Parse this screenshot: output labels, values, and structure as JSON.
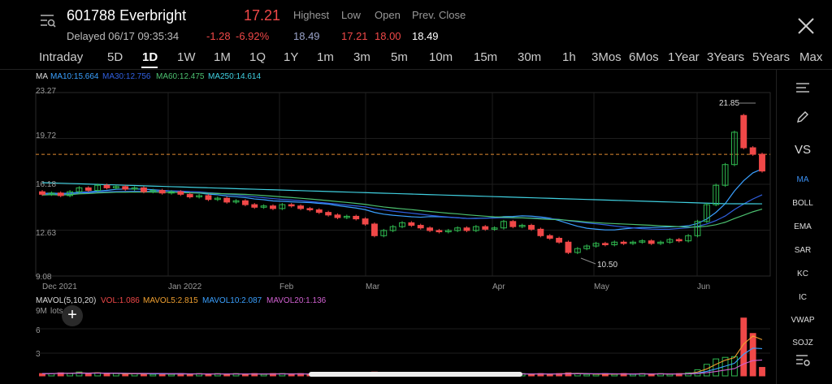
{
  "header": {
    "symbol": "601788 Everbright",
    "price": "17.21",
    "delayed": "Delayed 06/17 09:35:34",
    "change": "-1.28",
    "change_pct": "-6.92%",
    "highest_label": "Highest",
    "low_label": "Low",
    "open_label": "Open",
    "prev_close_label": "Prev. Close",
    "highest": "18.49",
    "low": "17.21",
    "open": "18.00",
    "prev_close": "18.49"
  },
  "tabs": [
    "Intraday",
    "5D",
    "1D",
    "1W",
    "1M",
    "1Q",
    "1Y",
    "1m",
    "3m",
    "5m",
    "10m",
    "15m",
    "30m",
    "1h",
    "3Mos",
    "6Mos",
    "1Year",
    "3Years",
    "5Years",
    "Max"
  ],
  "active_tab": "1D",
  "ma_legend": {
    "ma": "MA",
    "ma10": "MA10:15.664",
    "ma30": "MA30:12.756",
    "ma60": "MA60:12.475",
    "ma250": "MA250:14.614"
  },
  "yaxis": [
    "23.27",
    "19.72",
    "16.18",
    "12.63",
    "9.08"
  ],
  "xaxis": [
    "Dec 2021",
    "Jan 2022",
    "Feb",
    "Mar",
    "Apr",
    "May",
    "Jun"
  ],
  "annotations": {
    "high": "21.85",
    "low": "10.50"
  },
  "vol_legend": {
    "mavol": "MAVOL(5,10,20)",
    "vol": "VOL:1.086",
    "mavol5": "MAVOL5:2.815",
    "mavol10": "MAVOL10:2.087",
    "mavol20": "MAVOL20:1.136"
  },
  "vol_axis": {
    "unit": "9M",
    "lots": "lots",
    "v6": "6",
    "v3": "3"
  },
  "side_tools": [
    "MA",
    "BOLL",
    "EMA",
    "SAR",
    "KC",
    "IC",
    "VWAP",
    "SOJZ"
  ],
  "side_vs": "VS",
  "colors": {
    "up": "#2fb84f",
    "down": "#f04848",
    "ma10": "#3aa0ff",
    "ma30": "#3060e0",
    "ma60": "#4cc070",
    "ma250": "#40d0e0",
    "accent": "#3a8ef0"
  },
  "chart_data": {
    "type": "candlestick",
    "ylim": [
      9.08,
      23.27
    ],
    "prev_close_line": 18.49,
    "points": [
      [
        15.6,
        15.4
      ],
      [
        15.4,
        15.5
      ],
      [
        15.5,
        15.3
      ],
      [
        15.3,
        15.6
      ],
      [
        15.6,
        15.9
      ],
      [
        15.9,
        15.7
      ],
      [
        15.7,
        16.1
      ],
      [
        16.1,
        15.9
      ],
      [
        15.9,
        16.0
      ],
      [
        16.0,
        15.8
      ],
      [
        15.8,
        15.9
      ],
      [
        15.9,
        15.6
      ],
      [
        15.6,
        15.7
      ],
      [
        15.7,
        15.5
      ],
      [
        15.5,
        15.6
      ],
      [
        15.6,
        15.4
      ],
      [
        15.4,
        15.2
      ],
      [
        15.2,
        15.3
      ],
      [
        15.3,
        15.0
      ],
      [
        15.0,
        15.1
      ],
      [
        15.1,
        14.8
      ],
      [
        14.8,
        14.9
      ],
      [
        14.9,
        14.6
      ],
      [
        14.6,
        14.4
      ],
      [
        14.4,
        14.5
      ],
      [
        14.5,
        14.3
      ],
      [
        14.3,
        14.6
      ],
      [
        14.6,
        14.5
      ],
      [
        14.5,
        14.3
      ],
      [
        14.3,
        14.2
      ],
      [
        14.2,
        14.0
      ],
      [
        14.0,
        13.8
      ],
      [
        13.8,
        13.6
      ],
      [
        13.6,
        13.7
      ],
      [
        13.7,
        13.5
      ],
      [
        13.5,
        13.1
      ],
      [
        13.1,
        12.2
      ],
      [
        12.2,
        12.6
      ],
      [
        12.6,
        12.9
      ],
      [
        12.9,
        13.2
      ],
      [
        13.2,
        13.0
      ],
      [
        13.0,
        12.8
      ],
      [
        12.8,
        12.6
      ],
      [
        12.6,
        12.5
      ],
      [
        12.5,
        12.6
      ],
      [
        12.6,
        12.8
      ],
      [
        12.8,
        12.6
      ],
      [
        12.6,
        12.9
      ],
      [
        12.9,
        12.7
      ],
      [
        12.7,
        12.8
      ],
      [
        12.8,
        13.3
      ],
      [
        13.3,
        12.9
      ],
      [
        12.9,
        13.0
      ],
      [
        13.0,
        12.7
      ],
      [
        12.7,
        12.2
      ],
      [
        12.2,
        12.0
      ],
      [
        12.0,
        11.7
      ],
      [
        11.7,
        10.9
      ],
      [
        10.9,
        11.2
      ],
      [
        11.2,
        11.4
      ],
      [
        11.4,
        11.6
      ],
      [
        11.6,
        11.5
      ],
      [
        11.5,
        11.7
      ],
      [
        11.7,
        11.6
      ],
      [
        11.6,
        11.7
      ],
      [
        11.7,
        11.8
      ],
      [
        11.8,
        11.6
      ],
      [
        11.6,
        11.7
      ],
      [
        11.7,
        11.9
      ],
      [
        11.9,
        11.8
      ],
      [
        11.8,
        12.2
      ],
      [
        12.2,
        13.3
      ],
      [
        13.3,
        14.6
      ],
      [
        14.6,
        16.1
      ],
      [
        16.1,
        17.7
      ],
      [
        17.7,
        20.2
      ],
      [
        21.5,
        19.0
      ],
      [
        19.0,
        18.5
      ],
      [
        18.5,
        17.2
      ]
    ],
    "vol": [
      0.3,
      0.3,
      0.4,
      0.3,
      0.5,
      0.3,
      0.4,
      0.3,
      0.3,
      0.2,
      0.3,
      0.3,
      0.2,
      0.3,
      0.2,
      0.3,
      0.2,
      0.3,
      0.2,
      0.3,
      0.2,
      0.3,
      0.2,
      0.3,
      0.2,
      0.3,
      0.3,
      0.2,
      0.3,
      0.2,
      0.3,
      0.2,
      0.3,
      0.2,
      0.3,
      0.4,
      0.5,
      0.3,
      0.3,
      0.3,
      0.2,
      0.3,
      0.2,
      0.3,
      0.2,
      0.3,
      0.2,
      0.3,
      0.2,
      0.3,
      0.3,
      0.2,
      0.3,
      0.2,
      0.3,
      0.2,
      0.3,
      0.4,
      0.3,
      0.2,
      0.2,
      0.3,
      0.2,
      0.3,
      0.2,
      0.3,
      0.2,
      0.3,
      0.2,
      0.3,
      0.4,
      0.8,
      1.5,
      2.2,
      2.4,
      2.5,
      7.5,
      5.5,
      1.1
    ]
  }
}
